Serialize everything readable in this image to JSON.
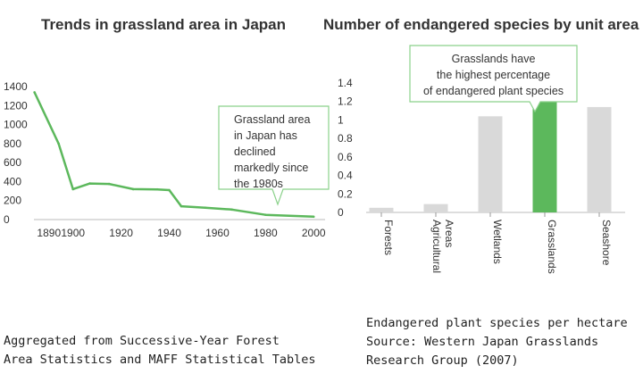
{
  "chart_data": [
    {
      "type": "line",
      "title": "Trends in grassland area in Japan",
      "x": [
        1884,
        1894,
        1900,
        1907,
        1915,
        1925,
        1935,
        1940,
        1945,
        1955,
        1966,
        1980,
        1990,
        2000
      ],
      "values": [
        1340,
        800,
        320,
        380,
        375,
        320,
        318,
        310,
        140,
        125,
        105,
        50,
        40,
        30
      ],
      "xticks": [
        "1890",
        "1900",
        "1920",
        "1940",
        "1960",
        "1980",
        "2000"
      ],
      "yticks": [
        "0",
        "200",
        "400",
        "600",
        "800",
        "1000",
        "1200",
        "1400"
      ],
      "xlim": [
        1886,
        2004
      ],
      "ylim": [
        0,
        1400
      ],
      "color": "#5cb85c",
      "annotation": [
        "Grassland area",
        "in Japan has",
        "declined",
        "markedly since",
        "the 1980s"
      ]
    },
    {
      "type": "bar",
      "title": "Number of endangered species by unit area",
      "categories": [
        "Forests",
        "Agricultural Areas",
        "Wetlands",
        "Grasslands",
        "Seashore"
      ],
      "values": [
        0.05,
        0.09,
        1.04,
        1.21,
        1.14
      ],
      "yticks": [
        "0",
        "0.2",
        "0.4",
        "0.6",
        "0.8",
        "1",
        "1.2",
        "1.4"
      ],
      "ylim": [
        0,
        1.4
      ],
      "bar_color": "#d9d9d9",
      "highlight_color": "#5cb85c",
      "highlight_index": 3,
      "annotation": [
        "Grasslands have",
        "the highest percentage",
        "of endangered plant species"
      ]
    }
  ],
  "notes": {
    "left": "Aggregated from Successive-Year Forest\nArea Statistics and MAFF Statistical Tables",
    "right": "Endangered plant species per hectare\nSource: Western Japan Grasslands\nResearch Group (2007)"
  }
}
